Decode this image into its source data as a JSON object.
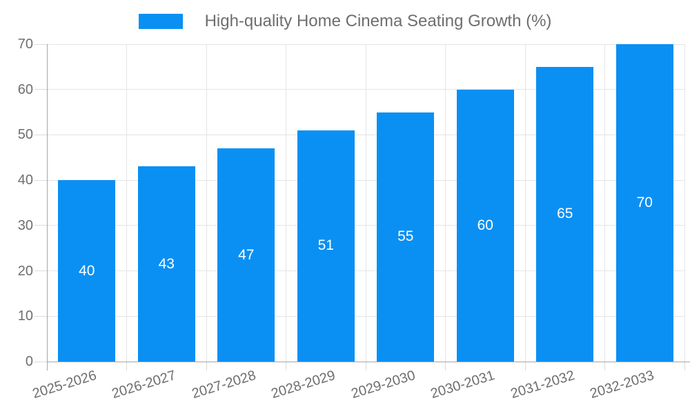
{
  "chart_data": {
    "type": "bar",
    "title": "High-quality Home Cinema Seating Growth (%)",
    "categories": [
      "2025-2026",
      "2026-2027",
      "2027-2028",
      "2028-2029",
      "2029-2030",
      "2030-2031",
      "2031-2032",
      "2032-2033"
    ],
    "values": [
      40,
      43,
      47,
      51,
      55,
      60,
      65,
      70
    ],
    "series": [
      {
        "name": "High-quality Home Cinema Seating Growth (%)",
        "values": [
          40,
          43,
          47,
          51,
          55,
          60,
          65,
          70
        ]
      }
    ],
    "xlabel": "",
    "ylabel": "",
    "ylim": [
      0,
      70
    ],
    "yticks": [
      0,
      10,
      20,
      30,
      40,
      50,
      60,
      70
    ],
    "grid": true,
    "legend_position": "top",
    "bar_color": "#0a90f3",
    "value_label_color": "#ffffff"
  },
  "style": {
    "background": "#ffffff",
    "grid_color": "#e4e4e4",
    "tick_mark_color": "#dadada",
    "axis_line_color": "#a6a6a6",
    "label_color": "#6e6e6e"
  }
}
